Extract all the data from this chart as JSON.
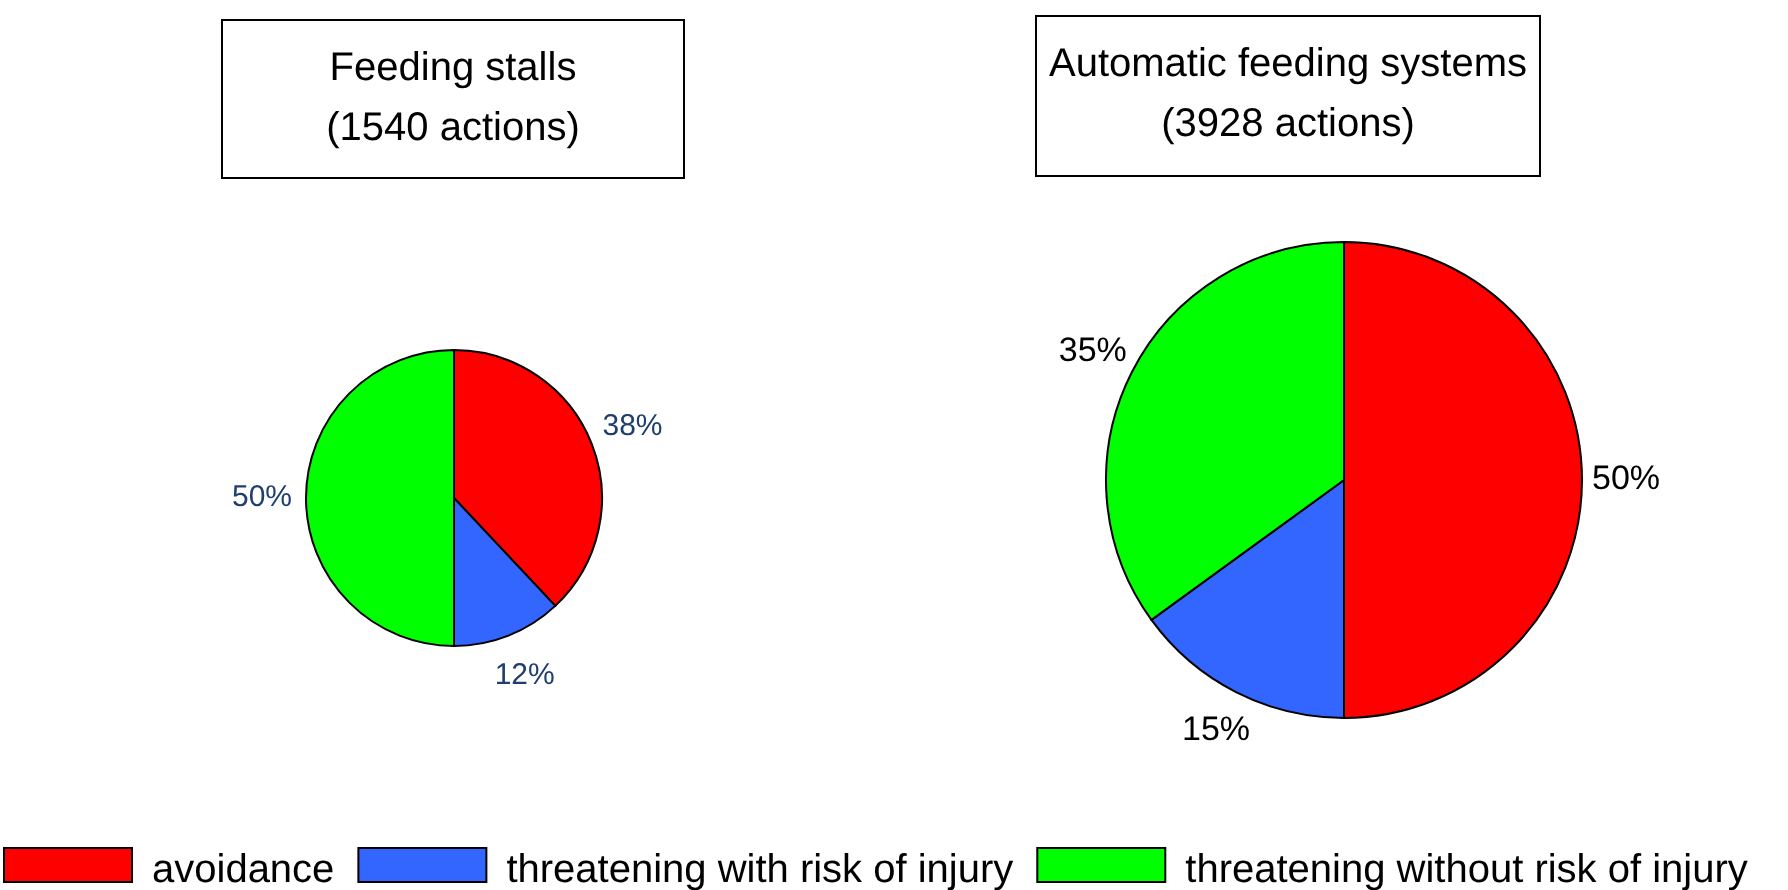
{
  "chart_data": [
    {
      "type": "pie",
      "title": "Feeding stalls",
      "subtitle": "(1540 actions)",
      "categories": [
        "avoidance",
        "threatening with risk of injury",
        "threatening without risk of injury"
      ],
      "values": [
        38,
        12,
        50
      ],
      "colors": [
        "#ff0000",
        "#3366ff",
        "#00ff00"
      ],
      "value_labels": [
        "38%",
        "12%",
        "50%"
      ],
      "legend": "bottom"
    },
    {
      "type": "pie",
      "title": "Automatic feeding systems",
      "subtitle": "(3928 actions)",
      "categories": [
        null,
        null,
        null
      ],
      "values": [
        50,
        15,
        35
      ],
      "colors": [
        "#ff0000",
        "#3366ff",
        "#00ff00"
      ],
      "value_labels": [
        "50%",
        "15%",
        "35%"
      ]
    }
  ]
}
